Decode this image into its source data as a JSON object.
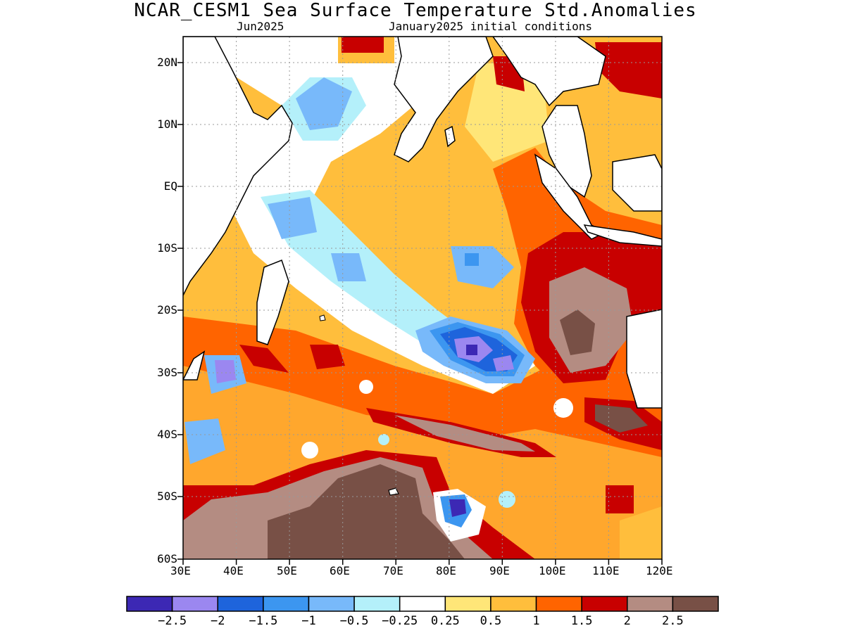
{
  "title": "NCAR_CESM1 Sea Surface Temperature Std.Anomalies",
  "subtitle_left": "Jun2025",
  "subtitle_right": "January2025 initial conditions",
  "lon_ticks": [
    "30E",
    "40E",
    "50E",
    "60E",
    "70E",
    "80E",
    "90E",
    "100E",
    "110E",
    "120E"
  ],
  "lat_ticks": [
    "20N",
    "10N",
    "EQ",
    "10S",
    "20S",
    "30S",
    "40S",
    "50S",
    "60S"
  ],
  "colorbar": {
    "colors": [
      "#3c28b4",
      "#9b87f0",
      "#1e64dc",
      "#3c96f0",
      "#78b9fa",
      "#b4f0fa",
      "#ffffff",
      "#ffe678",
      "#ffbe3c",
      "#ff6400",
      "#c80000",
      "#b48c82",
      "#785046"
    ],
    "labels": [
      "-2.5",
      "-2",
      "-1.5",
      "-1",
      "-0.5",
      "-0.25",
      "0.25",
      "0.5",
      "1",
      "1.5",
      "2",
      "2.5"
    ]
  }
}
